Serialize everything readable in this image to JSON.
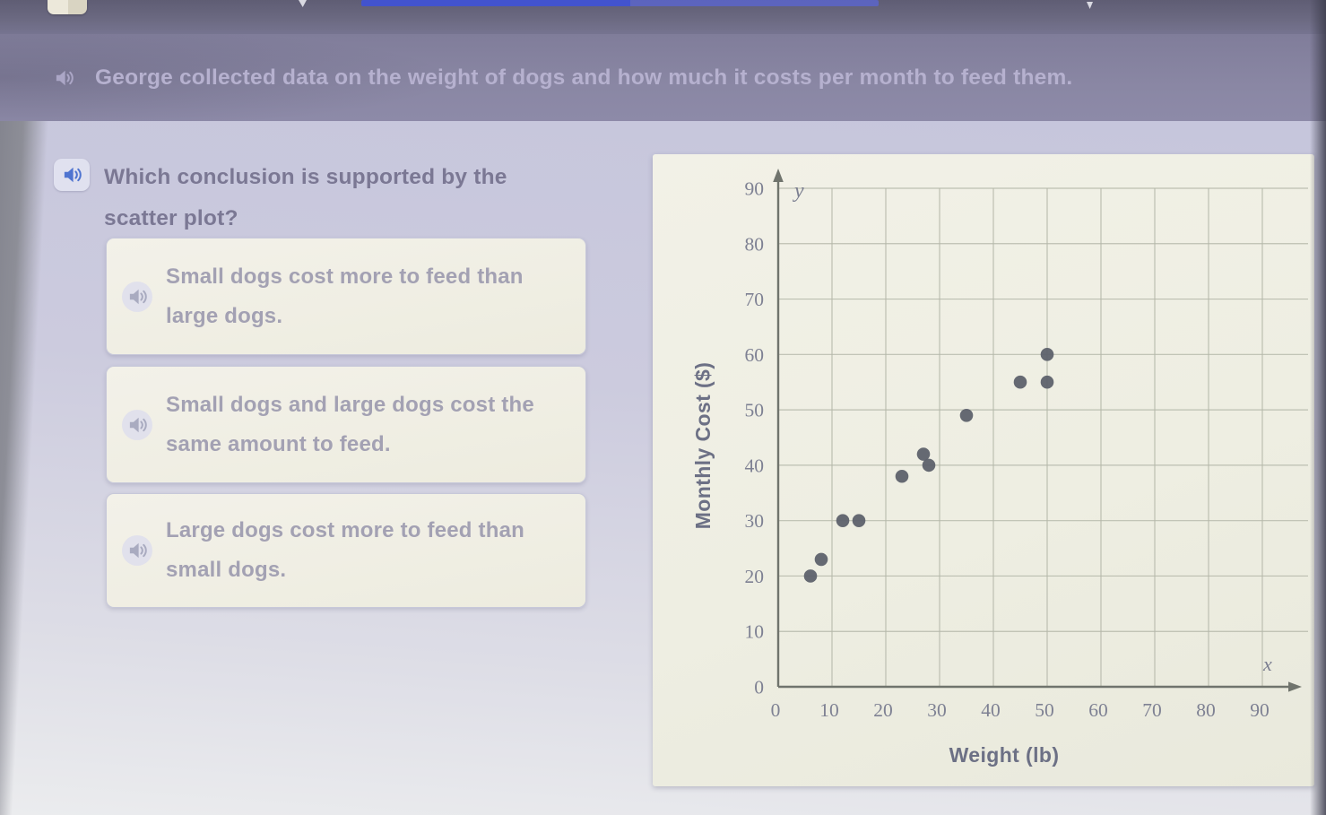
{
  "banner": {
    "text": "George collected data on the weight of dogs and how much it costs per month to feed them."
  },
  "question": {
    "text": "Which conclusion is supported by the scatter plot?"
  },
  "options": [
    {
      "text": "Small dogs cost more to feed than large dogs."
    },
    {
      "text": "Small dogs and large dogs cost the same amount to feed."
    },
    {
      "text": "Large dogs cost more to feed than small dogs."
    }
  ],
  "chart_data": {
    "type": "scatter",
    "xlabel": "Weight (lb)",
    "ylabel": "Monthly Cost ($)",
    "x_axis_letter": "x",
    "y_axis_letter": "y",
    "x_ticks": [
      0,
      10,
      20,
      30,
      40,
      50,
      60,
      70,
      80,
      90
    ],
    "y_ticks": [
      0,
      10,
      20,
      30,
      40,
      50,
      60,
      70,
      80,
      90
    ],
    "xlim": [
      0,
      97
    ],
    "ylim": [
      0,
      93
    ],
    "grid": true,
    "legend": false,
    "points": [
      [
        6,
        20
      ],
      [
        8,
        23
      ],
      [
        12,
        30
      ],
      [
        15,
        30
      ],
      [
        23,
        38
      ],
      [
        27,
        42
      ],
      [
        28,
        40
      ],
      [
        35,
        49
      ],
      [
        45,
        55
      ],
      [
        50,
        55
      ],
      [
        50,
        60
      ]
    ],
    "dot_color": "#5d616b"
  },
  "colors": {
    "header_bg": "#87849f",
    "top_strip_bg": "#6a6880",
    "content_bg": "#c9c9dd",
    "card_bg": "#f1efe5",
    "audio_accent": "#4f74d0",
    "grid_line": "#b4b7a9",
    "axis_line": "#70746d",
    "progress_blue": "#3f52d6"
  }
}
